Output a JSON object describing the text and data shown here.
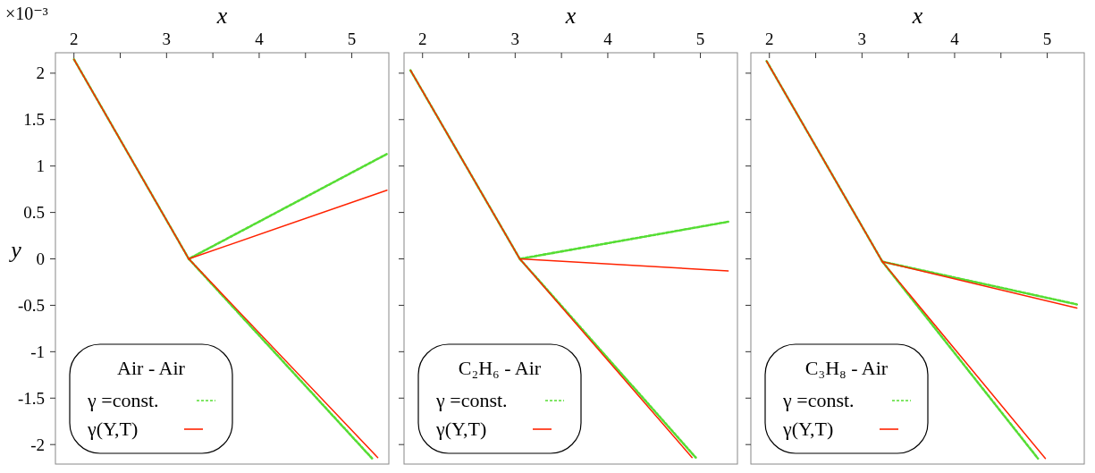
{
  "chart_data": [
    {
      "type": "line",
      "xlabel": "x",
      "ylabel": "y",
      "annotations": [
        "×10⁻³"
      ],
      "xlim": [
        1.8,
        5.4
      ],
      "xticks": [
        2,
        {
          "value": 2.5,
          "label": null
        },
        3,
        {
          "value": 3.5,
          "label": null
        },
        4,
        {
          "value": 4.5,
          "label": null
        },
        5
      ],
      "ylim": [
        -2.21,
        2.22
      ],
      "yticks": [
        -2,
        -1.5,
        -1,
        -0.5,
        0,
        0.5,
        1,
        1.5,
        2
      ],
      "legend": "bottom left",
      "legend_title": "Air - Air",
      "series": [
        {
          "name": "γ =const.",
          "color": "#55dd33",
          "line_style": "dashed",
          "x": [
            2.0,
            3.24,
            5.38
          ],
          "values": [
            2.15,
            0,
            1.13
          ]
        },
        {
          "color": "#55dd33",
          "line_style": "dashed",
          "x": [
            3.24,
            5.22
          ],
          "values": [
            0,
            -2.15
          ]
        },
        {
          "name": "γ(Y,T)",
          "color": "#ff2200",
          "line_style": "solid",
          "x": [
            2.0,
            3.24,
            5.38
          ],
          "values": [
            2.15,
            0,
            0.74
          ]
        },
        {
          "color": "#ff2200",
          "line_style": "solid",
          "x": [
            3.24,
            5.28
          ],
          "values": [
            0,
            -2.14
          ]
        }
      ]
    },
    {
      "type": "line",
      "xlabel": "x",
      "xlim": [
        1.8,
        5.4
      ],
      "xticks": [
        2,
        {
          "value": 2.5,
          "label": null
        },
        3,
        {
          "value": 3.5,
          "label": null
        },
        4,
        {
          "value": 4.5,
          "label": null
        },
        5
      ],
      "ylim": [
        -2.21,
        2.22
      ],
      "yticks": [
        -2,
        -1.5,
        -1,
        -0.5,
        0,
        0.5,
        1,
        1.5,
        2
      ],
      "tick_labels": "x",
      "legend": "bottom left",
      "legend_title": "C₂H₆ - Air",
      "series": [
        {
          "name": "γ =const.",
          "color": "#55dd33",
          "line_style": "dashed",
          "x": [
            1.87,
            3.05,
            5.3
          ],
          "values": [
            2.03,
            0,
            0.4
          ]
        },
        {
          "color": "#55dd33",
          "line_style": "dashed",
          "x": [
            3.05,
            4.95
          ],
          "values": [
            0,
            -2.14
          ]
        },
        {
          "name": "γ(Y,T)",
          "color": "#ff2200",
          "line_style": "solid",
          "x": [
            1.87,
            3.05,
            5.3
          ],
          "values": [
            2.03,
            0,
            -0.13
          ]
        },
        {
          "color": "#ff2200",
          "line_style": "solid",
          "x": [
            3.05,
            4.91
          ],
          "values": [
            0,
            -2.14
          ]
        }
      ]
    },
    {
      "type": "line",
      "xlabel": "x",
      "xlim": [
        1.8,
        5.4
      ],
      "xticks": [
        2,
        {
          "value": 2.5,
          "label": null
        },
        3,
        {
          "value": 3.5,
          "label": null
        },
        4,
        {
          "value": 4.5,
          "label": null
        },
        5
      ],
      "ylim": [
        -2.21,
        2.22
      ],
      "yticks": [
        -2,
        -1.5,
        -1,
        -0.5,
        0,
        0.5,
        1,
        1.5,
        2
      ],
      "tick_labels": "x",
      "legend": "bottom left",
      "legend_title": "C₃H₈ - Air",
      "series": [
        {
          "name": "γ =const.",
          "color": "#55dd33",
          "line_style": "dashed",
          "x": [
            1.97,
            3.22,
            5.32
          ],
          "values": [
            2.13,
            -0.03,
            -0.49
          ]
        },
        {
          "color": "#55dd33",
          "line_style": "dashed",
          "x": [
            3.22,
            4.9
          ],
          "values": [
            -0.03,
            -2.15
          ]
        },
        {
          "name": "γ(Y,T)",
          "color": "#ff2200",
          "line_style": "solid",
          "x": [
            1.97,
            3.22,
            5.32
          ],
          "values": [
            2.13,
            -0.03,
            -0.53
          ]
        },
        {
          "color": "#ff2200",
          "line_style": "solid",
          "x": [
            3.22,
            4.98
          ],
          "values": [
            -0.03,
            -2.15
          ]
        }
      ]
    }
  ]
}
